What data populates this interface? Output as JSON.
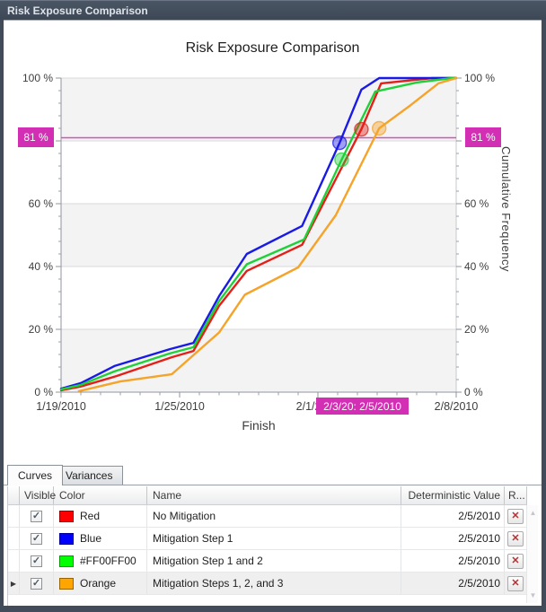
{
  "window": {
    "title": "Risk Exposure Comparison"
  },
  "tabs": [
    {
      "label": "Curves",
      "active": true
    },
    {
      "label": "Variances",
      "active": false
    }
  ],
  "chart_data": {
    "type": "line",
    "title": "Risk Exposure Comparison",
    "xlabel": "Finish",
    "ylabel": "Cumulative Frequency",
    "ylim": [
      0,
      100
    ],
    "grid": "horizontal",
    "band_colors": [
      "#f3f3f4",
      "#ffffff"
    ],
    "x_range_days": [
      0,
      20
    ],
    "x_minor_tick_days": 1,
    "y_minor_tick_pct": 4,
    "x_ticks": [
      {
        "day": 0,
        "label": "1/19/2010"
      },
      {
        "day": 6,
        "label": "1/25/2010"
      },
      {
        "day": 13,
        "label": "2/1/2010"
      },
      {
        "day": 20,
        "label": "2/8/2010"
      }
    ],
    "y_ticks": [
      {
        "pct": 0,
        "label": "0 %"
      },
      {
        "pct": 20,
        "label": "20 %"
      },
      {
        "pct": 40,
        "label": "40 %"
      },
      {
        "pct": 60,
        "label": "60 %"
      },
      {
        "pct": 80,
        "label": ""
      },
      {
        "pct": 100,
        "label": "100 %"
      }
    ],
    "threshold": {
      "pct": 81,
      "label": "81 %",
      "x_label": "2/3/20: 2/5/2010",
      "line_color": "#d650be",
      "badge_color": "#d32fb4"
    },
    "series": [
      {
        "name": "No Mitigation",
        "color_name": "Red",
        "color": "#e32017",
        "swatch": "#ff0000",
        "deterministic": "2/5/2010",
        "marker": {
          "day": 15.2,
          "pct": 83.7
        },
        "points": [
          [
            0,
            0.6
          ],
          [
            1,
            1.8
          ],
          [
            2.8,
            5.1
          ],
          [
            5.6,
            11.1
          ],
          [
            6.7,
            13.1
          ],
          [
            8,
            27.5
          ],
          [
            9.4,
            38.6
          ],
          [
            12.2,
            46.9
          ],
          [
            15.2,
            83.7
          ],
          [
            16.2,
            98.3
          ],
          [
            18.8,
            100
          ],
          [
            20,
            100
          ]
        ]
      },
      {
        "name": "Mitigation Step 1",
        "color_name": "Blue",
        "color": "#1a1ae6",
        "swatch": "#0000ff",
        "deterministic": "2/5/2010",
        "marker": {
          "day": 14.1,
          "pct": 79.4
        },
        "points": [
          [
            0,
            1.1
          ],
          [
            1,
            2.9
          ],
          [
            2.7,
            8.3
          ],
          [
            5.5,
            13.7
          ],
          [
            6.7,
            15.7
          ],
          [
            8,
            30.6
          ],
          [
            9.4,
            44
          ],
          [
            12.2,
            52.9
          ],
          [
            14.1,
            79.4
          ],
          [
            15.2,
            96.3
          ],
          [
            16.1,
            100
          ],
          [
            20,
            100
          ]
        ]
      },
      {
        "name": "Mitigation Step 1 and 2",
        "color_name": "#FF00FF00",
        "color": "#1fd139",
        "swatch": "#00ff00",
        "deterministic": "2/5/2010",
        "marker": {
          "day": 14.2,
          "pct": 74
        },
        "points": [
          [
            0,
            0.9
          ],
          [
            1,
            2.3
          ],
          [
            2.7,
            6.6
          ],
          [
            5.5,
            12.3
          ],
          [
            6.7,
            14.3
          ],
          [
            8,
            29
          ],
          [
            9.4,
            40.7
          ],
          [
            12.3,
            48.6
          ],
          [
            14.2,
            74
          ],
          [
            15.9,
            95.7
          ],
          [
            18,
            98.6
          ],
          [
            19.8,
            100
          ],
          [
            20,
            100
          ]
        ]
      },
      {
        "name": "Mitigation Steps 1, 2, and 3",
        "color_name": "Orange",
        "color": "#f5a329",
        "swatch": "#ffa500",
        "deterministic": "2/5/2010",
        "marker": {
          "day": 16.1,
          "pct": 84
        },
        "points": [
          [
            0.9,
            0.3
          ],
          [
            3,
            3.4
          ],
          [
            5.6,
            5.7
          ],
          [
            8,
            19
          ],
          [
            9.3,
            31
          ],
          [
            12,
            39.7
          ],
          [
            13.9,
            56.3
          ],
          [
            16.1,
            84
          ],
          [
            17.7,
            91.4
          ],
          [
            19.1,
            98.3
          ],
          [
            20,
            100
          ]
        ]
      }
    ]
  },
  "table": {
    "columns": {
      "visible": "Visible",
      "color": "Color",
      "name": "Name",
      "deterministic": "Deterministic Value",
      "remove": "R..."
    },
    "selected_row_index": 3,
    "rows": [
      {
        "visible": true,
        "color_label": "Red",
        "swatch": "#ff0000",
        "name": "No Mitigation",
        "deterministic": "2/5/2010"
      },
      {
        "visible": true,
        "color_label": "Blue",
        "swatch": "#0000ff",
        "name": "Mitigation Step 1",
        "deterministic": "2/5/2010"
      },
      {
        "visible": true,
        "color_label": "#FF00FF00",
        "swatch": "#00ff00",
        "name": "Mitigation Step 1 and 2",
        "deterministic": "2/5/2010"
      },
      {
        "visible": true,
        "color_label": "Orange",
        "swatch": "#ffa500",
        "name": "Mitigation Steps 1, 2, and 3",
        "deterministic": "2/5/2010"
      }
    ]
  }
}
